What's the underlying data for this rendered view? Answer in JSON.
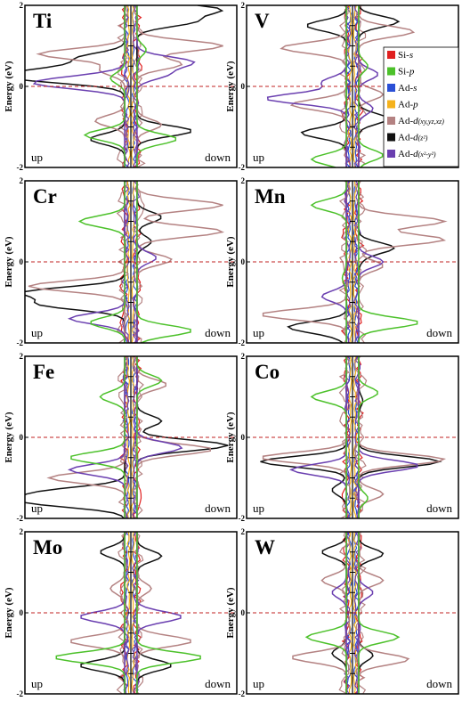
{
  "figure": {
    "ylabel": "Energy (eV)",
    "spin_up_label": "up",
    "spin_down_label": "down",
    "fermi_level_eV": 0
  },
  "legend": {
    "location": "top-right of V panel",
    "entries": [
      {
        "id": "si_s",
        "prefix": "Si-",
        "italic": "s",
        "sub": "",
        "color": "#e02020"
      },
      {
        "id": "si_p",
        "prefix": "Si-",
        "italic": "p",
        "sub": "",
        "color": "#4cc12a"
      },
      {
        "id": "ad_s",
        "prefix": "Ad-",
        "italic": "s",
        "sub": "",
        "color": "#2a4fd6"
      },
      {
        "id": "ad_p",
        "prefix": "Ad-",
        "italic": "p",
        "sub": "",
        "color": "#f5b21c"
      },
      {
        "id": "ad_dxy",
        "prefix": "Ad-",
        "italic": "d",
        "sub": "(xy,yz,xz)",
        "color": "#b48282"
      },
      {
        "id": "ad_dz2",
        "prefix": "Ad-",
        "italic": "d",
        "sub": "(z²)",
        "color": "#111111"
      },
      {
        "id": "ad_dx2",
        "prefix": "Ad-",
        "italic": "d",
        "sub": "(x²-y²)",
        "color": "#6a3fb0"
      }
    ]
  },
  "chart_data": [
    {
      "type": "line",
      "panel": "Ti",
      "title": "Ti",
      "ylabel": "Energy (eV)",
      "ylim": [
        -2,
        2
      ],
      "yticks": [
        "2",
        "0",
        "-2"
      ],
      "xlabel_left": "up",
      "xlabel_right": "down",
      "series": [
        {
          "name": "Ad-d(z²)",
          "color": "#111111",
          "points": [
            [
              -1.0,
              0.2
            ],
            [
              -0.7,
              0.4
            ],
            [
              -0.5,
              0.7
            ],
            [
              0.6,
              1.6
            ],
            [
              0.85,
              1.9
            ],
            [
              -0.4,
              -1.3
            ],
            [
              0.6,
              -1.1
            ]
          ]
        },
        {
          "name": "Ad-d(xy,yz,xz)",
          "color": "#b48282",
          "points": [
            [
              -0.9,
              0.8
            ],
            [
              -0.3,
              0.4
            ],
            [
              0.9,
              1.0
            ],
            [
              0.5,
              0.55
            ],
            [
              -0.35,
              -0.85
            ],
            [
              0.3,
              -0.95
            ]
          ]
        },
        {
          "name": "Ad-d(x²-y²)",
          "color": "#6a3fb0",
          "points": [
            [
              -0.75,
              0.05
            ],
            [
              -0.4,
              0.2
            ],
            [
              0.6,
              0.6
            ],
            [
              0.35,
              0.3
            ]
          ]
        },
        {
          "name": "Si-p",
          "color": "#4cc12a",
          "points": [
            [
              -0.45,
              -1.2
            ],
            [
              -0.2,
              0.2
            ],
            [
              0.45,
              -1.3
            ],
            [
              0.15,
              0.9
            ]
          ]
        }
      ]
    },
    {
      "type": "line",
      "panel": "V",
      "title": "V",
      "ylabel": "Energy (eV)",
      "ylim": [
        -2,
        2
      ],
      "yticks": [
        "2",
        "0",
        "-2"
      ],
      "xlabel_left": "up",
      "xlabel_right": "down",
      "series": [
        {
          "name": "Ad-d(z²)",
          "color": "#111111",
          "points": [
            [
              -0.45,
              1.5
            ],
            [
              0.45,
              1.6
            ],
            [
              -0.5,
              -1.15
            ],
            [
              0.35,
              -0.8
            ]
          ]
        },
        {
          "name": "Ad-d(xy,yz,xz)",
          "color": "#b48282",
          "points": [
            [
              -0.7,
              0.95
            ],
            [
              -0.6,
              -0.45
            ],
            [
              0.6,
              1.35
            ],
            [
              0.3,
              -0.2
            ]
          ]
        },
        {
          "name": "Ad-d(x²-y²)",
          "color": "#6a3fb0",
          "points": [
            [
              -0.85,
              -0.3
            ],
            [
              -0.3,
              0.1
            ],
            [
              0.25,
              0.3
            ],
            [
              0.2,
              -0.55
            ]
          ]
        },
        {
          "name": "Si-p",
          "color": "#4cc12a",
          "points": [
            [
              -0.4,
              -1.8
            ],
            [
              0.3,
              -1.7
            ],
            [
              0.15,
              0.5
            ]
          ]
        }
      ]
    },
    {
      "type": "line",
      "panel": "Cr",
      "title": "Cr",
      "ylabel": "Energy (eV)",
      "ylim": [
        -2,
        2
      ],
      "yticks": [
        "2",
        "0",
        "-2"
      ],
      "xlabel_left": "up",
      "xlabel_right": "down",
      "series": [
        {
          "name": "Ad-d(z²)",
          "color": "#111111",
          "points": [
            [
              -1.0,
              -0.75
            ],
            [
              -0.85,
              -1.05
            ],
            [
              0.3,
              1.1
            ],
            [
              0.2,
              0.5
            ]
          ]
        },
        {
          "name": "Ad-d(xy,yz,xz)",
          "color": "#b48282",
          "points": [
            [
              -1.0,
              -0.6
            ],
            [
              0.9,
              1.4
            ],
            [
              0.9,
              0.75
            ],
            [
              0.4,
              0.05
            ]
          ]
        },
        {
          "name": "Ad-d(x²-y²)",
          "color": "#6a3fb0",
          "points": [
            [
              -0.6,
              -1.4
            ],
            [
              0.25,
              0.1
            ]
          ]
        },
        {
          "name": "Si-p",
          "color": "#4cc12a",
          "points": [
            [
              -0.5,
              1.0
            ],
            [
              -0.4,
              -1.5
            ],
            [
              0.6,
              -1.7
            ]
          ]
        }
      ]
    },
    {
      "type": "line",
      "panel": "Mn",
      "title": "Mn",
      "ylabel": "Energy (eV)",
      "ylim": [
        -2,
        2
      ],
      "yticks": [
        "2",
        "0",
        "-2"
      ],
      "xlabel_left": "up",
      "xlabel_right": "down",
      "series": [
        {
          "name": "Ad-d(z²)",
          "color": "#111111",
          "points": [
            [
              -0.6,
              -1.6
            ],
            [
              -0.15,
              -1.8
            ],
            [
              0.4,
              0.35
            ],
            [
              0.1,
              0.1
            ]
          ]
        },
        {
          "name": "Ad-d(xy,yz,xz)",
          "color": "#b48282",
          "points": [
            [
              -0.9,
              -1.3
            ],
            [
              0.9,
              1.0
            ],
            [
              0.9,
              0.55
            ],
            [
              0.3,
              -0.1
            ]
          ]
        },
        {
          "name": "Ad-d(x²-y²)",
          "color": "#6a3fb0",
          "points": [
            [
              -0.3,
              -0.85
            ],
            [
              0.3,
              0.0
            ]
          ]
        },
        {
          "name": "Si-p",
          "color": "#4cc12a",
          "points": [
            [
              -0.4,
              1.4
            ],
            [
              -0.1,
              -0.4
            ],
            [
              0.65,
              -1.5
            ]
          ]
        }
      ]
    },
    {
      "type": "line",
      "panel": "Fe",
      "title": "Fe",
      "ylabel": "Energy (eV)",
      "ylim": [
        -2,
        2
      ],
      "yticks": [
        "2",
        "0",
        "-2"
      ],
      "xlabel_left": "up",
      "xlabel_right": "down",
      "series": [
        {
          "name": "Ad-d(z²)",
          "color": "#111111",
          "points": [
            [
              -0.95,
              -1.6
            ],
            [
              -0.8,
              -1.35
            ],
            [
              0.95,
              -0.2
            ],
            [
              0.3,
              0.4
            ]
          ]
        },
        {
          "name": "Ad-d(xy,yz,xz)",
          "color": "#b48282",
          "points": [
            [
              -0.8,
              -1.0
            ],
            [
              0.8,
              -0.3
            ],
            [
              0.35,
              1.3
            ]
          ]
        },
        {
          "name": "Ad-d(x²-y²)",
          "color": "#6a3fb0",
          "points": [
            [
              -0.6,
              -0.8
            ],
            [
              0.5,
              -0.25
            ]
          ]
        },
        {
          "name": "Si-p",
          "color": "#4cc12a",
          "points": [
            [
              -0.6,
              -0.5
            ],
            [
              -0.3,
              1.0
            ],
            [
              0.3,
              1.4
            ]
          ]
        }
      ]
    },
    {
      "type": "line",
      "panel": "Co",
      "title": "Co",
      "ylabel": "Energy (eV)",
      "ylim": [
        -2,
        2
      ],
      "yticks": [
        "2",
        "0",
        "-2"
      ],
      "xlabel_left": "up",
      "xlabel_right": "down",
      "series": [
        {
          "name": "Ad-d(z²)",
          "color": "#111111",
          "points": [
            [
              -0.9,
              -0.6
            ],
            [
              -0.2,
              -1.3
            ],
            [
              0.85,
              -0.6
            ],
            [
              0.1,
              0.9
            ]
          ]
        },
        {
          "name": "Ad-d(xy,yz,xz)",
          "color": "#b48282",
          "points": [
            [
              -0.9,
              -0.5
            ],
            [
              0.9,
              -0.55
            ],
            [
              0.3,
              -1.4
            ]
          ]
        },
        {
          "name": "Ad-d(x²-y²)",
          "color": "#6a3fb0",
          "points": [
            [
              -0.6,
              -0.8
            ],
            [
              0.65,
              -0.7
            ]
          ]
        },
        {
          "name": "Si-p",
          "color": "#4cc12a",
          "points": [
            [
              -0.4,
              1.0
            ],
            [
              0.25,
              1.1
            ],
            [
              0.15,
              -1.5
            ]
          ]
        }
      ]
    },
    {
      "type": "line",
      "panel": "Mo",
      "title": "Mo",
      "ylabel": "Energy (eV)",
      "ylim": [
        -2,
        2
      ],
      "yticks": [
        "2",
        "0",
        "-2"
      ],
      "xlabel_left": "up",
      "xlabel_right": "down",
      "series": [
        {
          "name": "Ad-d(z²)",
          "color": "#111111",
          "points": [
            [
              -0.3,
              1.5
            ],
            [
              0.3,
              1.4
            ],
            [
              -0.5,
              -1.3
            ],
            [
              0.4,
              -1.3
            ]
          ]
        },
        {
          "name": "Ad-d(xy,yz,xz)",
          "color": "#b48282",
          "points": [
            [
              -0.6,
              -0.7
            ],
            [
              0.6,
              -0.7
            ],
            [
              -0.2,
              0.6
            ],
            [
              0.2,
              0.6
            ]
          ]
        },
        {
          "name": "Ad-d(x²-y²)",
          "color": "#6a3fb0",
          "points": [
            [
              -0.5,
              -0.1
            ],
            [
              0.5,
              -0.1
            ]
          ]
        },
        {
          "name": "Si-p",
          "color": "#4cc12a",
          "points": [
            [
              -0.75,
              -1.1
            ],
            [
              0.7,
              -1.1
            ]
          ]
        }
      ]
    },
    {
      "type": "line",
      "panel": "W",
      "title": "W",
      "ylabel": "Energy (eV)",
      "ylim": [
        -2,
        2
      ],
      "yticks": [
        "2",
        "0",
        "-2"
      ],
      "xlabel_left": "up",
      "xlabel_right": "down",
      "series": [
        {
          "name": "Ad-d(z²)",
          "color": "#111111",
          "points": [
            [
              -0.3,
              1.5
            ],
            [
              0.3,
              1.45
            ],
            [
              -0.2,
              -1.0
            ],
            [
              0.2,
              -1.05
            ]
          ]
        },
        {
          "name": "Ad-d(xy,yz,xz)",
          "color": "#b48282",
          "points": [
            [
              -0.6,
              -1.1
            ],
            [
              0.55,
              -1.15
            ],
            [
              -0.3,
              0.8
            ],
            [
              0.3,
              0.8
            ]
          ]
        },
        {
          "name": "Ad-d(x²-y²)",
          "color": "#6a3fb0",
          "points": [
            [
              -0.2,
              0.5
            ],
            [
              0.2,
              0.5
            ]
          ]
        },
        {
          "name": "Si-p",
          "color": "#4cc12a",
          "points": [
            [
              -0.45,
              -0.6
            ],
            [
              0.45,
              -0.6
            ]
          ]
        }
      ]
    }
  ]
}
